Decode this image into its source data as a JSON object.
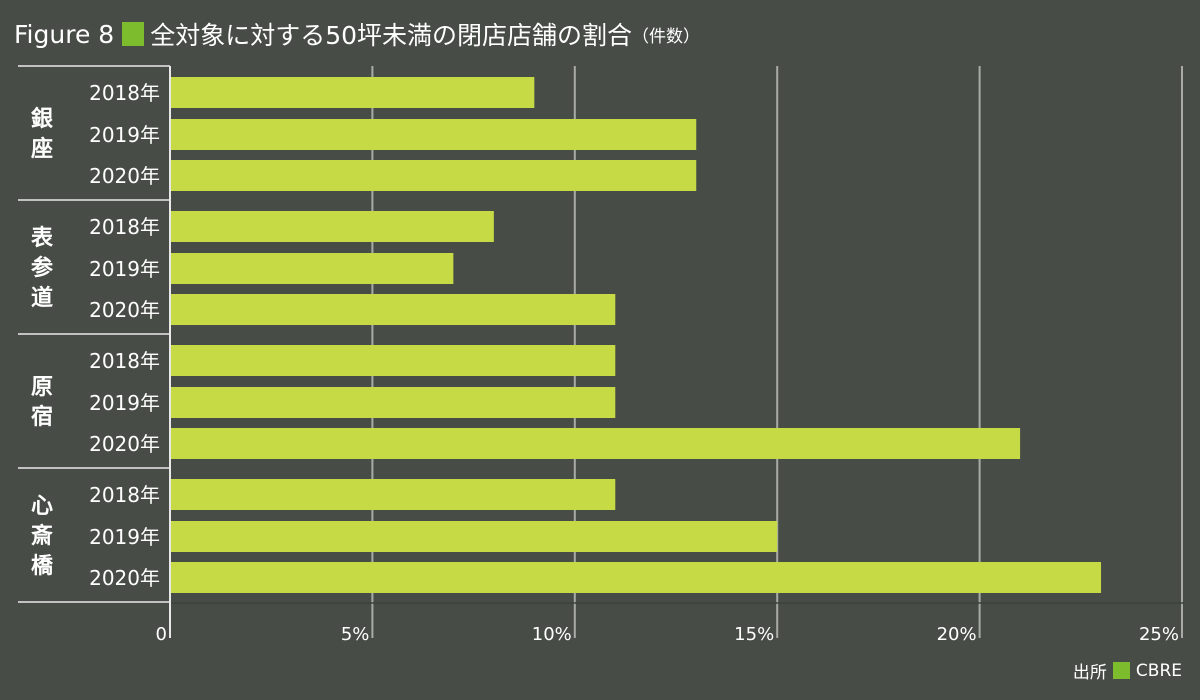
{
  "title": {
    "figure_label": "Figure 8",
    "text": "全対象に対する50坪未満の閉店店舗の割合",
    "unit_note": "（件数）",
    "accent_color": "#7dbc2c"
  },
  "source": {
    "label": "出所",
    "name": "CBRE"
  },
  "chart_data": {
    "type": "bar",
    "orientation": "horizontal",
    "title": "全対象に対する50坪未満の閉店店舗の割合（件数）",
    "groups": [
      {
        "name": "銀座",
        "categories": [
          "2018年",
          "2019年",
          "2020年"
        ],
        "values": [
          9,
          13,
          13
        ]
      },
      {
        "name": "表参道",
        "categories": [
          "2018年",
          "2019年",
          "2020年"
        ],
        "values": [
          8,
          7,
          11
        ]
      },
      {
        "name": "原宿",
        "categories": [
          "2018年",
          "2019年",
          "2020年"
        ],
        "values": [
          11,
          11,
          21
        ]
      },
      {
        "name": "心斎橋",
        "categories": [
          "2018年",
          "2019年",
          "2020年"
        ],
        "values": [
          11,
          15,
          23
        ]
      }
    ],
    "xlim": [
      0,
      25
    ],
    "xticks": [
      0,
      5,
      10,
      15,
      20,
      25
    ],
    "xtick_labels": [
      "0",
      "5%",
      "10%",
      "15%",
      "20%",
      "25%"
    ],
    "xlabel": "",
    "ylabel": "",
    "grid": true,
    "bar_color": "#c6da45"
  }
}
